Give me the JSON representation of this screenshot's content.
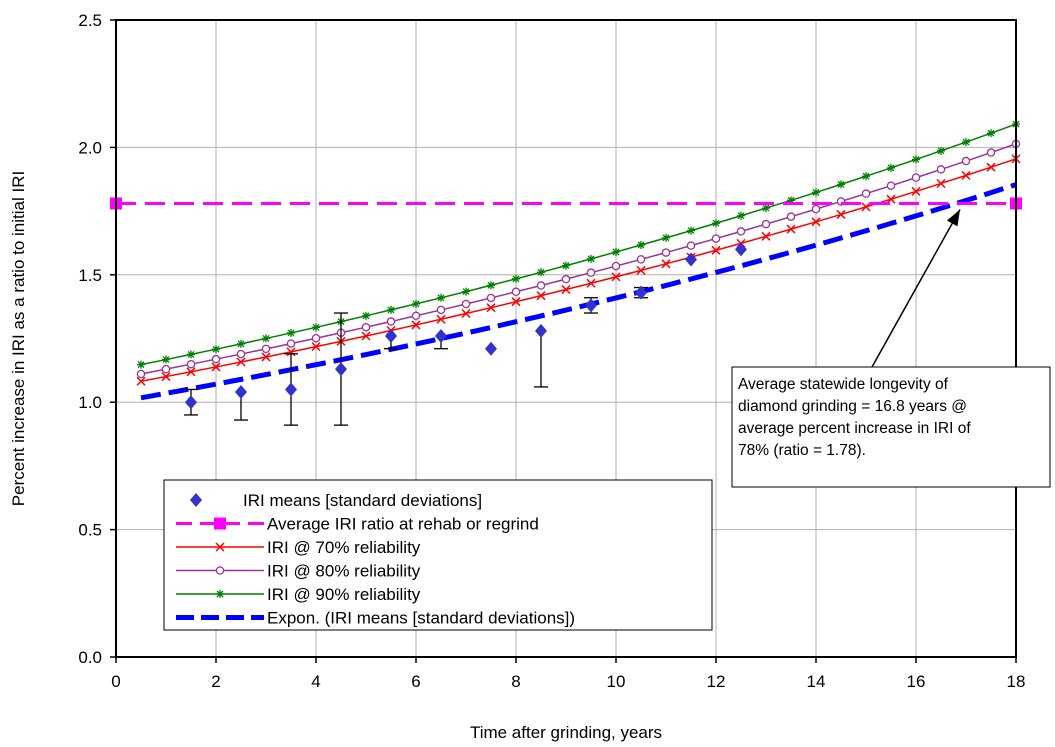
{
  "chart_data": {
    "type": "scatter",
    "xlabel": "Time after grinding, years",
    "ylabel": "Percent increase in IRI as a ratio to initial IRI",
    "xlim": [
      0,
      18
    ],
    "ylim": [
      0,
      2.5
    ],
    "xticks": [
      "0",
      "2",
      "4",
      "6",
      "8",
      "10",
      "12",
      "14",
      "16",
      "18"
    ],
    "yticks": [
      "0.0",
      "0.5",
      "1.0",
      "1.5",
      "2.0",
      "2.5"
    ],
    "grid": true,
    "legend_position": "bottom-left",
    "legend": [
      "IRI means [standard deviations]",
      "Average IRI ratio at rehab or regrind",
      "IRI @ 70% reliability",
      "IRI @ 80% reliability",
      "IRI @ 90% reliability",
      "Expon. (IRI means [standard deviations])"
    ],
    "annotation": {
      "lines": [
        "Average statewide longevity of",
        "diamond grinding = 16.8 years @",
        "average percent increase in IRI of",
        "78% (ratio = 1.78)."
      ],
      "points_to": [
        16.8,
        1.78
      ]
    },
    "means": {
      "name": "IRI means [standard deviations]",
      "color": "#3333cc",
      "x": [
        1.5,
        2.5,
        3.5,
        4.5,
        5.5,
        6.5,
        7.5,
        8.5,
        9.5,
        10.5,
        11.5,
        12.5
      ],
      "y": [
        1.0,
        1.04,
        1.05,
        1.13,
        1.26,
        1.26,
        1.21,
        1.28,
        1.38,
        1.43,
        1.56,
        1.6
      ],
      "err_low": [
        0.95,
        0.93,
        0.91,
        0.91,
        1.21,
        1.21,
        null,
        1.06,
        1.35,
        1.41,
        null,
        null
      ],
      "err_high": [
        1.05,
        null,
        1.19,
        1.35,
        null,
        null,
        null,
        null,
        1.41,
        1.45,
        null,
        null
      ]
    },
    "rehab": {
      "name": "Average IRI ratio at rehab or regrind",
      "color": "#ff00ff",
      "x": [
        0,
        18
      ],
      "y": [
        1.78,
        1.78
      ]
    },
    "reliability": [
      {
        "name": "IRI @ 70% reliability",
        "color": "#ff0000",
        "marker": "x",
        "y0": 1.064,
        "rate": 0.0338
      },
      {
        "name": "IRI @ 80% reliability",
        "color": "#993399",
        "marker": "o",
        "y0": 1.092,
        "rate": 0.034
      },
      {
        "name": "IRI @ 90% reliability",
        "color": "#008000",
        "marker": "*",
        "y0": 1.128,
        "rate": 0.0343
      }
    ],
    "reliability_x": {
      "start": 0.5,
      "end": 18,
      "step": 0.5
    },
    "trend": {
      "name": "Expon. (IRI means [standard deviations])",
      "color": "#0000ff",
      "x": [
        0.5,
        18
      ],
      "y0": 1.0,
      "rate": 0.0343
    }
  }
}
